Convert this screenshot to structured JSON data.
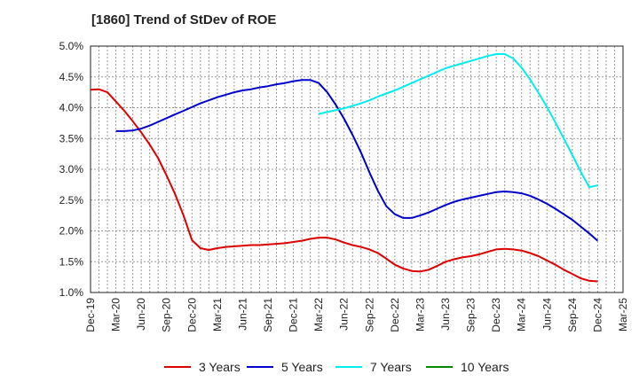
{
  "chart_data": {
    "type": "line",
    "title": "[1860]  Trend of StDev of ROE",
    "xlabel": "",
    "ylabel": "",
    "x_start": "2019-12",
    "categories": [
      "Dec-19",
      "Mar-20",
      "Jun-20",
      "Sep-20",
      "Dec-20",
      "Mar-21",
      "Jun-21",
      "Sep-21",
      "Dec-21",
      "Mar-22",
      "Jun-22",
      "Sep-22",
      "Dec-22",
      "Mar-23",
      "Jun-23",
      "Sep-23",
      "Dec-23",
      "Mar-24",
      "Jun-24",
      "Sep-24",
      "Dec-24",
      "Mar-25"
    ],
    "ylim": [
      1.0,
      5.0
    ],
    "yticks": [
      "1.0%",
      "1.5%",
      "2.0%",
      "2.5%",
      "3.0%",
      "3.5%",
      "4.0%",
      "4.5%",
      "5.0%"
    ],
    "grid": true,
    "legend_position": "bottom",
    "series": [
      {
        "name": "3 Years",
        "color": "#dd0000",
        "points": [
          [
            "2019-12",
            4.29
          ],
          [
            "2020-01",
            4.3
          ],
          [
            "2020-02",
            4.25
          ],
          [
            "2020-03",
            4.1
          ],
          [
            "2020-04",
            3.95
          ],
          [
            "2020-05",
            3.78
          ],
          [
            "2020-06",
            3.6
          ],
          [
            "2020-07",
            3.4
          ],
          [
            "2020-08",
            3.18
          ],
          [
            "2020-09",
            2.9
          ],
          [
            "2020-10",
            2.6
          ],
          [
            "2020-11",
            2.25
          ],
          [
            "2020-12",
            1.85
          ],
          [
            "2021-01",
            1.72
          ],
          [
            "2021-02",
            1.69
          ],
          [
            "2021-03",
            1.72
          ],
          [
            "2021-04",
            1.74
          ],
          [
            "2021-05",
            1.75
          ],
          [
            "2021-06",
            1.76
          ],
          [
            "2021-07",
            1.77
          ],
          [
            "2021-08",
            1.77
          ],
          [
            "2021-09",
            1.78
          ],
          [
            "2021-10",
            1.79
          ],
          [
            "2021-11",
            1.8
          ],
          [
            "2021-12",
            1.82
          ],
          [
            "2022-01",
            1.84
          ],
          [
            "2022-02",
            1.87
          ],
          [
            "2022-03",
            1.89
          ],
          [
            "2022-04",
            1.89
          ],
          [
            "2022-05",
            1.86
          ],
          [
            "2022-06",
            1.81
          ],
          [
            "2022-07",
            1.77
          ],
          [
            "2022-08",
            1.74
          ],
          [
            "2022-09",
            1.7
          ],
          [
            "2022-10",
            1.64
          ],
          [
            "2022-11",
            1.55
          ],
          [
            "2022-12",
            1.45
          ],
          [
            "2023-01",
            1.39
          ],
          [
            "2023-02",
            1.35
          ],
          [
            "2023-03",
            1.34
          ],
          [
            "2023-04",
            1.37
          ],
          [
            "2023-05",
            1.43
          ],
          [
            "2023-06",
            1.5
          ],
          [
            "2023-07",
            1.54
          ],
          [
            "2023-08",
            1.57
          ],
          [
            "2023-09",
            1.59
          ],
          [
            "2023-10",
            1.62
          ],
          [
            "2023-11",
            1.66
          ],
          [
            "2023-12",
            1.7
          ],
          [
            "2024-01",
            1.71
          ],
          [
            "2024-02",
            1.7
          ],
          [
            "2024-03",
            1.68
          ],
          [
            "2024-04",
            1.64
          ],
          [
            "2024-05",
            1.59
          ],
          [
            "2024-06",
            1.52
          ],
          [
            "2024-07",
            1.45
          ],
          [
            "2024-08",
            1.37
          ],
          [
            "2024-09",
            1.3
          ],
          [
            "2024-10",
            1.23
          ],
          [
            "2024-11",
            1.19
          ],
          [
            "2024-12",
            1.18
          ]
        ]
      },
      {
        "name": "5 Years",
        "color": "#0000cc",
        "points": [
          [
            "2020-03",
            3.62
          ],
          [
            "2020-04",
            3.62
          ],
          [
            "2020-05",
            3.63
          ],
          [
            "2020-06",
            3.66
          ],
          [
            "2020-07",
            3.71
          ],
          [
            "2020-08",
            3.77
          ],
          [
            "2020-09",
            3.83
          ],
          [
            "2020-10",
            3.89
          ],
          [
            "2020-11",
            3.95
          ],
          [
            "2020-12",
            4.01
          ],
          [
            "2021-01",
            4.07
          ],
          [
            "2021-02",
            4.12
          ],
          [
            "2021-03",
            4.17
          ],
          [
            "2021-04",
            4.21
          ],
          [
            "2021-05",
            4.25
          ],
          [
            "2021-06",
            4.28
          ],
          [
            "2021-07",
            4.3
          ],
          [
            "2021-08",
            4.33
          ],
          [
            "2021-09",
            4.35
          ],
          [
            "2021-10",
            4.38
          ],
          [
            "2021-11",
            4.4
          ],
          [
            "2021-12",
            4.43
          ],
          [
            "2022-01",
            4.45
          ],
          [
            "2022-02",
            4.45
          ],
          [
            "2022-03",
            4.4
          ],
          [
            "2022-04",
            4.25
          ],
          [
            "2022-05",
            4.05
          ],
          [
            "2022-06",
            3.82
          ],
          [
            "2022-07",
            3.56
          ],
          [
            "2022-08",
            3.27
          ],
          [
            "2022-09",
            2.95
          ],
          [
            "2022-10",
            2.65
          ],
          [
            "2022-11",
            2.4
          ],
          [
            "2022-12",
            2.27
          ],
          [
            "2023-01",
            2.21
          ],
          [
            "2023-02",
            2.21
          ],
          [
            "2023-03",
            2.25
          ],
          [
            "2023-04",
            2.3
          ],
          [
            "2023-05",
            2.36
          ],
          [
            "2023-06",
            2.42
          ],
          [
            "2023-07",
            2.47
          ],
          [
            "2023-08",
            2.51
          ],
          [
            "2023-09",
            2.54
          ],
          [
            "2023-10",
            2.57
          ],
          [
            "2023-11",
            2.6
          ],
          [
            "2023-12",
            2.63
          ],
          [
            "2024-01",
            2.64
          ],
          [
            "2024-02",
            2.63
          ],
          [
            "2024-03",
            2.61
          ],
          [
            "2024-04",
            2.57
          ],
          [
            "2024-05",
            2.51
          ],
          [
            "2024-06",
            2.44
          ],
          [
            "2024-07",
            2.36
          ],
          [
            "2024-08",
            2.27
          ],
          [
            "2024-09",
            2.18
          ],
          [
            "2024-10",
            2.07
          ],
          [
            "2024-11",
            1.96
          ],
          [
            "2024-12",
            1.84
          ]
        ]
      },
      {
        "name": "7 Years",
        "color": "#00eeee",
        "points": [
          [
            "2022-03",
            3.9
          ],
          [
            "2022-04",
            3.93
          ],
          [
            "2022-05",
            3.96
          ],
          [
            "2022-06",
            3.99
          ],
          [
            "2022-07",
            4.03
          ],
          [
            "2022-08",
            4.07
          ],
          [
            "2022-09",
            4.12
          ],
          [
            "2022-10",
            4.18
          ],
          [
            "2022-11",
            4.23
          ],
          [
            "2022-12",
            4.28
          ],
          [
            "2023-01",
            4.34
          ],
          [
            "2023-02",
            4.4
          ],
          [
            "2023-03",
            4.46
          ],
          [
            "2023-04",
            4.52
          ],
          [
            "2023-05",
            4.58
          ],
          [
            "2023-06",
            4.64
          ],
          [
            "2023-07",
            4.68
          ],
          [
            "2023-08",
            4.72
          ],
          [
            "2023-09",
            4.76
          ],
          [
            "2023-10",
            4.8
          ],
          [
            "2023-11",
            4.84
          ],
          [
            "2023-12",
            4.87
          ],
          [
            "2024-01",
            4.87
          ],
          [
            "2024-02",
            4.8
          ],
          [
            "2024-03",
            4.65
          ],
          [
            "2024-04",
            4.46
          ],
          [
            "2024-05",
            4.24
          ],
          [
            "2024-06",
            4.01
          ],
          [
            "2024-07",
            3.76
          ],
          [
            "2024-08",
            3.5
          ],
          [
            "2024-09",
            3.23
          ],
          [
            "2024-10",
            2.96
          ],
          [
            "2024-11",
            2.71
          ],
          [
            "2024-12",
            2.74
          ]
        ]
      },
      {
        "name": "10 Years",
        "color": "#008800",
        "points": []
      }
    ]
  }
}
